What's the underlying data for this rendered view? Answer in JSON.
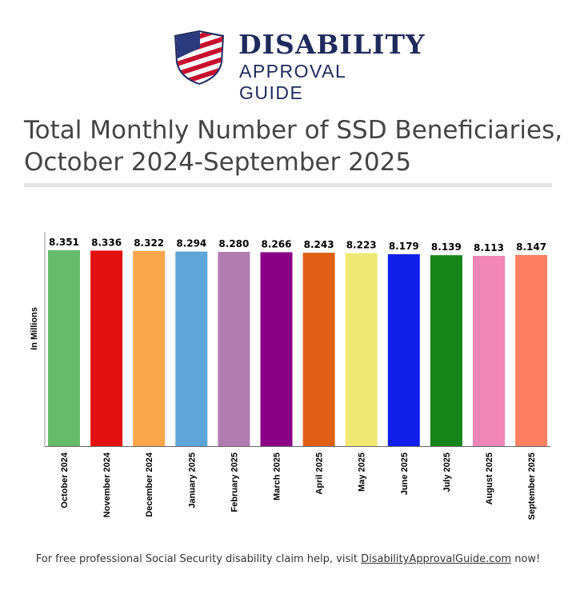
{
  "brand": {
    "line1": "DISABILITY",
    "line2": "APPROVAL GUIDE"
  },
  "title_line1": "Total Monthly Number of SSD Beneficiaries,",
  "title_line2": "October 2024-September 2025",
  "footer": {
    "text": "For free professional Social Security disability claim help, visit ",
    "link": "DisabilityApprovalGuide.com",
    "suffix": " now!"
  },
  "chart_data": {
    "type": "bar",
    "title": "Total Monthly Number of SSD Beneficiaries, October 2024-September 2025",
    "ylabel": "In Millions",
    "xlabel": "",
    "ylim": [
      0,
      8.5
    ],
    "grid": false,
    "categories": [
      "October 2024",
      "November 2024",
      "December 2024",
      "January 2025",
      "February 2025",
      "March 2025",
      "April 2025",
      "May 2025",
      "June 2025",
      "July 2025",
      "August 2025",
      "September 2025"
    ],
    "values": [
      8.351,
      8.336,
      8.322,
      8.294,
      8.28,
      8.266,
      8.243,
      8.223,
      8.179,
      8.139,
      8.113,
      8.147
    ],
    "colors": [
      "#66bb6a",
      "#e31010",
      "#f9a54a",
      "#5ea6d9",
      "#b07cb0",
      "#8b0085",
      "#e05f15",
      "#f0e872",
      "#0f1ee8",
      "#168418",
      "#ef86b6",
      "#ff7f62"
    ]
  }
}
